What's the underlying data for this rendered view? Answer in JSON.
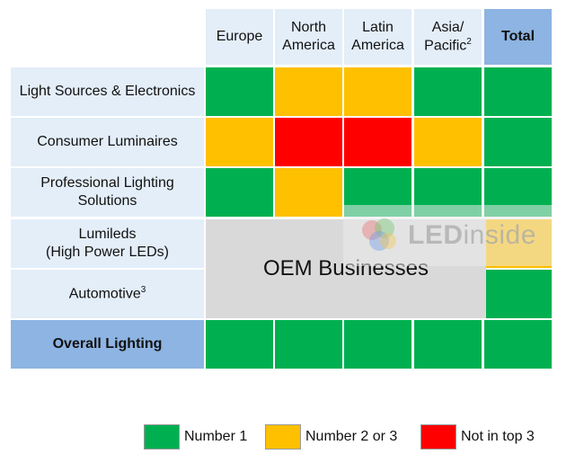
{
  "chart_data": {
    "type": "table",
    "columns": [
      "Europe",
      "North America",
      "Latin America",
      "Asia/ Pacific",
      "Total"
    ],
    "column_header_parts": [
      [
        "Europe"
      ],
      [
        "North",
        "America"
      ],
      [
        "Latin",
        "America"
      ],
      [
        "Asia/",
        "Pacific"
      ],
      [
        "Total"
      ]
    ],
    "column_footnotes": [
      "",
      "",
      "",
      "2",
      ""
    ],
    "rows": [
      {
        "label_lines": [
          "Light Sources & Electronics"
        ],
        "footnote": "",
        "cells": [
          "Number 1",
          "Number 2 or 3",
          "Number 2 or 3",
          "Number 1",
          "Number 1"
        ]
      },
      {
        "label_lines": [
          "Consumer Luminaires"
        ],
        "footnote": "",
        "cells": [
          "Number 2 or 3",
          "Not in top 3",
          "Not in top 3",
          "Number 2 or 3",
          "Number 1"
        ]
      },
      {
        "label_lines": [
          "Professional Lighting",
          "Solutions"
        ],
        "footnote": "",
        "cells": [
          "Number 1",
          "Number 2 or 3",
          "Number 1",
          "Number 1",
          "Number 1"
        ]
      },
      {
        "label_lines": [
          "Lumileds",
          "(High Power LEDs)"
        ],
        "footnote": "",
        "cells": [
          "OEM Businesses",
          "OEM Businesses",
          "OEM Businesses",
          "OEM Businesses",
          "Number 2 or 3"
        ]
      },
      {
        "label_lines": [
          "Automotive"
        ],
        "footnote": "3",
        "cells": [
          "OEM Businesses",
          "OEM Businesses",
          "OEM Businesses",
          "OEM Businesses",
          "Number 1"
        ]
      },
      {
        "label_lines": [
          "Overall Lighting"
        ],
        "footnote": "",
        "cells": [
          "Number 1",
          "Number 1",
          "Number 1",
          "Number 1",
          "Number 1"
        ]
      }
    ],
    "merged_block_label": "OEM Businesses",
    "legend": [
      {
        "label": "Number 1",
        "color": "#00b050"
      },
      {
        "label": "Number 2 or 3",
        "color": "#ffc000"
      },
      {
        "label": "Not in top 3",
        "color": "#ff0000"
      }
    ]
  },
  "watermark": {
    "text_colored": "LED",
    "text_plain": "inside"
  }
}
